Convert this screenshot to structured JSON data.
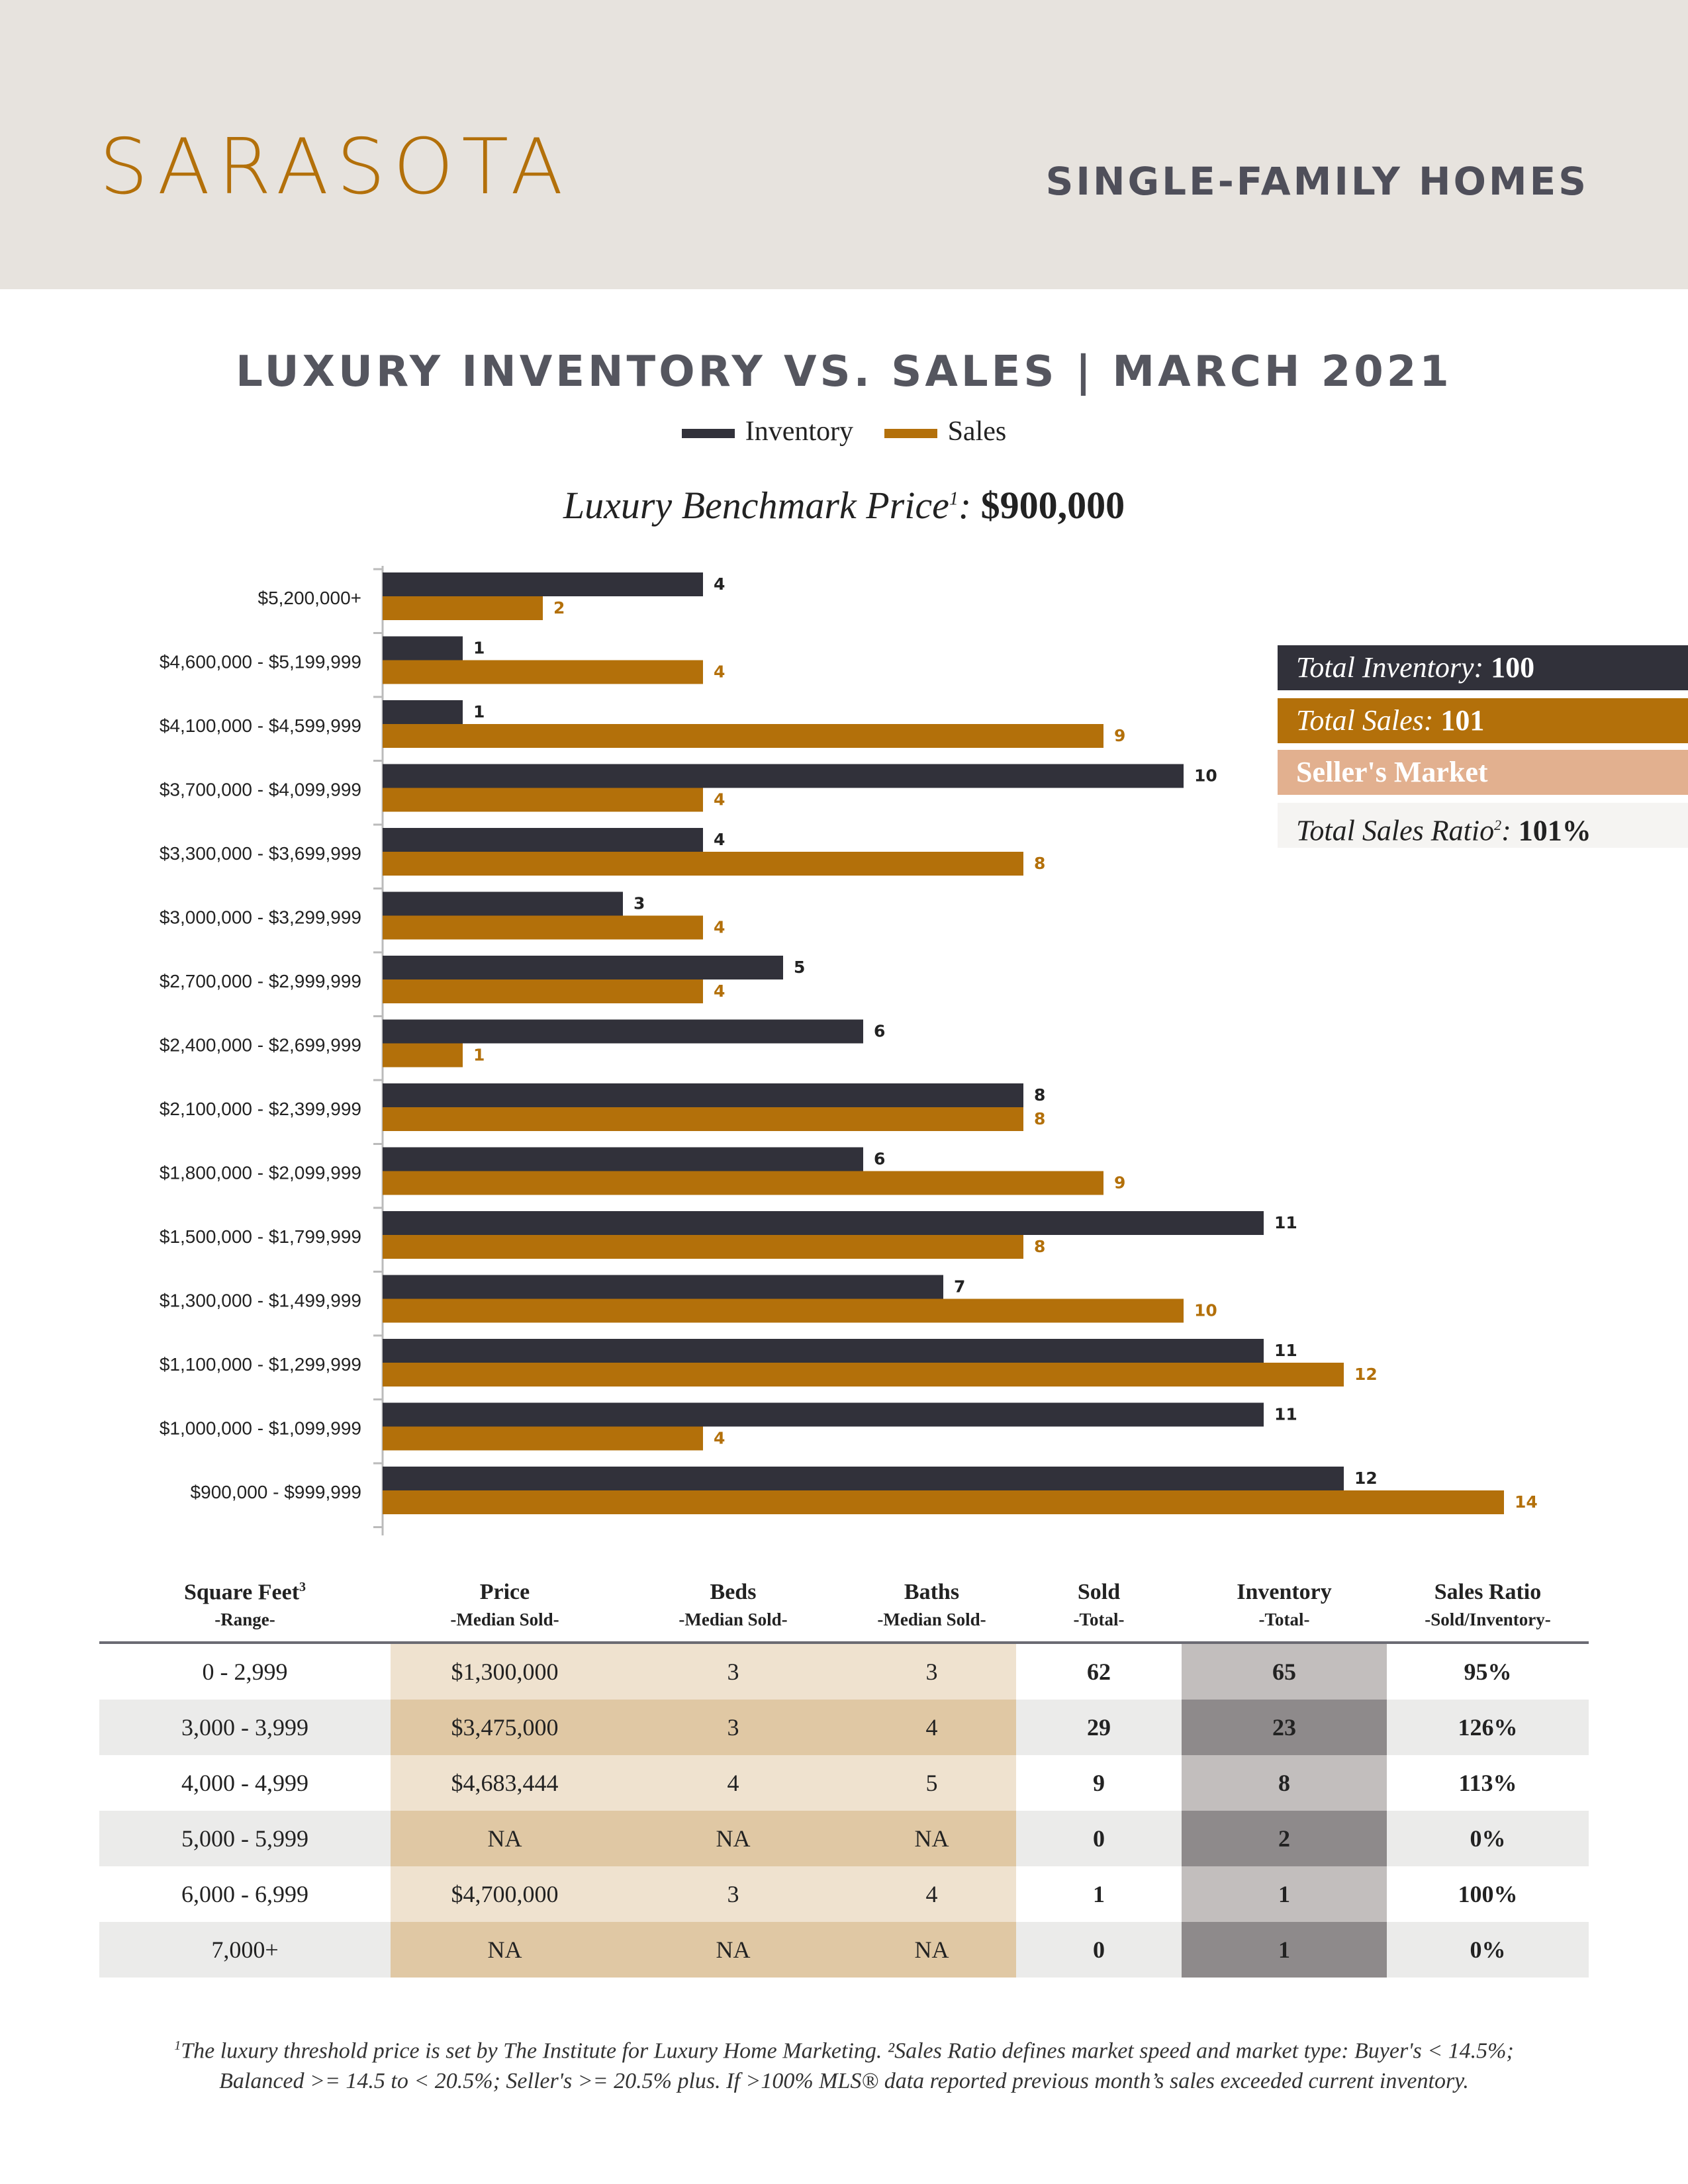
{
  "header": {
    "city": "SARASOTA",
    "property_type": "SINGLE-FAMILY HOMES"
  },
  "colors": {
    "inventory": "#31313a",
    "sales": "#b3700a",
    "sellers_market": "#e2b08f",
    "header_bg": "#e7e3de"
  },
  "benchmark": {
    "label": "Luxury Benchmark Price",
    "sup": "1",
    "value": "$900,000"
  },
  "chart_data": {
    "type": "bar",
    "orientation": "horizontal",
    "title": "LUXURY INVENTORY VS. SALES | MARCH 2021",
    "categories": [
      "$5,200,000+",
      "$4,600,000 - $5,199,999",
      "$4,100,000 - $4,599,999",
      "$3,700,000 - $4,099,999",
      "$3,300,000 - $3,699,999",
      "$3,000,000 - $3,299,999",
      "$2,700,000 - $2,999,999",
      "$2,400,000 - $2,699,999",
      "$2,100,000 - $2,399,999",
      "$1,800,000 - $2,099,999",
      "$1,500,000 - $1,799,999",
      "$1,300,000 - $1,499,999",
      "$1,100,000 - $1,299,999",
      "$1,000,000 - $1,099,999",
      "$900,000 - $999,999"
    ],
    "series": [
      {
        "name": "Inventory",
        "color": "#31313a",
        "values": [
          4,
          1,
          1,
          10,
          4,
          3,
          5,
          6,
          8,
          6,
          11,
          7,
          11,
          11,
          12
        ]
      },
      {
        "name": "Sales",
        "color": "#b3700a",
        "values": [
          2,
          4,
          9,
          4,
          8,
          4,
          4,
          1,
          8,
          9,
          8,
          10,
          12,
          4,
          14
        ]
      }
    ],
    "xlim": [
      0,
      14
    ],
    "legend_position": "top-center",
    "grid": false
  },
  "summary": {
    "inventory_label": "Total Inventory:",
    "inventory_value": "100",
    "sales_label": "Total Sales:",
    "sales_value": "101",
    "market": "Seller's Market",
    "ratio_label": "Total Sales Ratio",
    "ratio_sup": "2",
    "ratio_value": "101%"
  },
  "table": {
    "headers": [
      {
        "title": "Square Feet",
        "sup": "3",
        "sub": "-Range-"
      },
      {
        "title": "Price",
        "sup": "",
        "sub": "-Median Sold-"
      },
      {
        "title": "Beds",
        "sup": "",
        "sub": "-Median Sold-"
      },
      {
        "title": "Baths",
        "sup": "",
        "sub": "-Median Sold-"
      },
      {
        "title": "Sold",
        "sup": "",
        "sub": "-Total-"
      },
      {
        "title": "Inventory",
        "sup": "",
        "sub": "-Total-"
      },
      {
        "title": "Sales Ratio",
        "sup": "",
        "sub": "-Sold/Inventory-"
      }
    ],
    "rows": [
      [
        "0 - 2,999",
        "$1,300,000",
        "3",
        "3",
        "62",
        "65",
        "95%"
      ],
      [
        "3,000 - 3,999",
        "$3,475,000",
        "3",
        "4",
        "29",
        "23",
        "126%"
      ],
      [
        "4,000 - 4,999",
        "$4,683,444",
        "4",
        "5",
        "9",
        "8",
        "113%"
      ],
      [
        "5,000 - 5,999",
        "NA",
        "NA",
        "NA",
        "0",
        "2",
        "0%"
      ],
      [
        "6,000 - 6,999",
        "$4,700,000",
        "3",
        "4",
        "1",
        "1",
        "100%"
      ],
      [
        "7,000+",
        "NA",
        "NA",
        "NA",
        "0",
        "1",
        "0%"
      ]
    ]
  },
  "footnote": {
    "line1": "The luxury threshold price is set by The Institute for Luxury Home Marketing. ²Sales Ratio defines market speed and market type: Buyer's < 14.5%;",
    "line1_sup": "1",
    "line2": "Balanced >= 14.5 to < 20.5%; Seller's >= 20.5% plus. If >100% MLS® data reported previous month’s sales exceeded current inventory."
  }
}
